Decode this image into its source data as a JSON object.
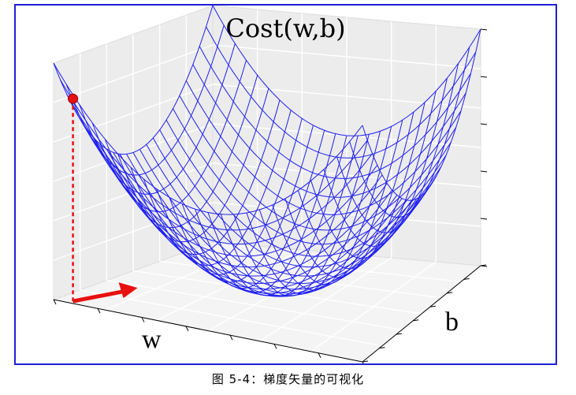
{
  "chart_data": {
    "type": "surface",
    "title": "Cost(w,b)",
    "xlabel": "w",
    "ylabel": "b",
    "zlabel": "",
    "surface_function": "w^2 + b^2",
    "w_range": [
      -1,
      1
    ],
    "b_range": [
      -1,
      1
    ],
    "grid_lines_per_axis": 24,
    "wire_color": "#1f1ff0",
    "marker": {
      "w": -0.9,
      "b": -0.95,
      "color": "#e81010"
    },
    "gradient_arrow": {
      "color": "#e81010"
    },
    "grid": true
  },
  "caption": "图 5-4：梯度矢量的可视化",
  "frame_color": "#1f1fd6"
}
